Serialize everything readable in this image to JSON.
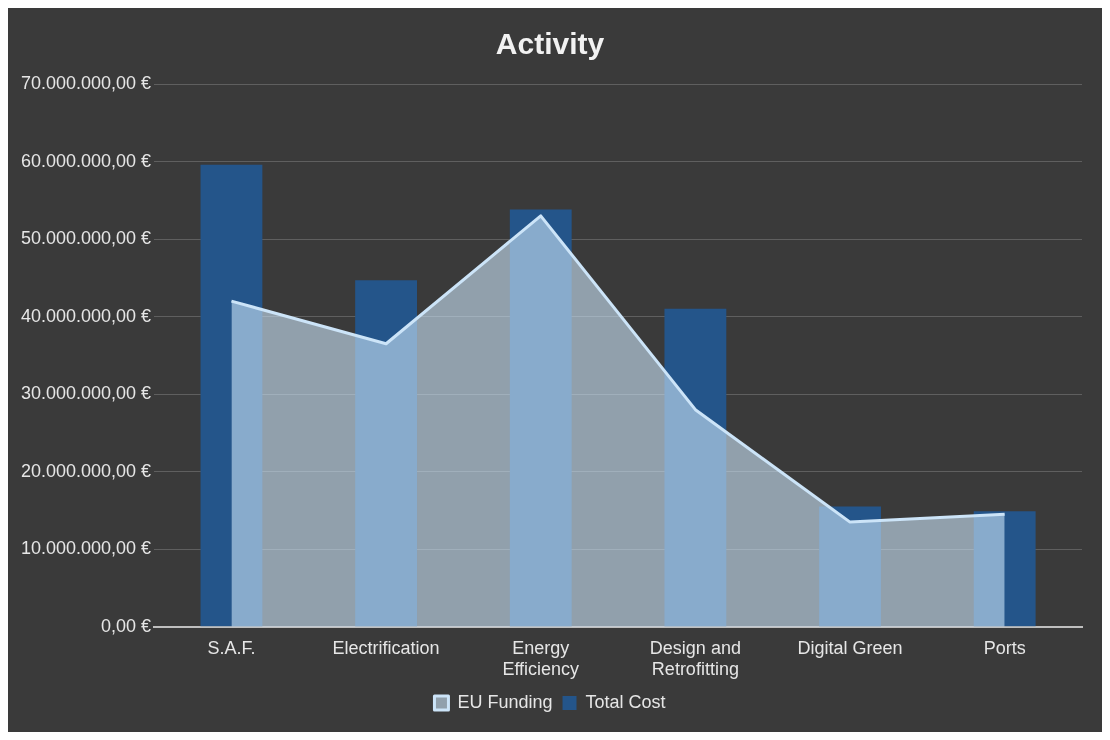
{
  "chart_data": {
    "type": "bar",
    "title": "Activity",
    "categories": [
      "S.A.F.",
      "Electrification",
      "Energy Efficiency",
      "Design and Retrofitting",
      "Digital Green",
      "Ports"
    ],
    "series": [
      {
        "name": "EU Funding",
        "type": "area",
        "color": "#cce4f8",
        "values": [
          42000000,
          36500000,
          53000000,
          28000000,
          13500000,
          14500000
        ]
      },
      {
        "name": "Total Cost",
        "color": "#24558a",
        "values": [
          59600000,
          44700000,
          53800000,
          41000000,
          15500000,
          14900000
        ]
      }
    ],
    "ylim": [
      0,
      70000000
    ],
    "yticks": [
      {
        "value": 0,
        "label": "0,00 €"
      },
      {
        "value": 10000000,
        "label": "10.000.000,00 €"
      },
      {
        "value": 20000000,
        "label": "20.000.000,00 €"
      },
      {
        "value": 30000000,
        "label": "30.000.000,00 €"
      },
      {
        "value": 40000000,
        "label": "40.000.000,00 €"
      },
      {
        "value": 50000000,
        "label": "50.000.000,00 €"
      },
      {
        "value": 60000000,
        "label": "60.000.000,00 €"
      },
      {
        "value": 70000000,
        "label": "70.000.000,00 €"
      }
    ],
    "grid": "y",
    "legend": "bottom"
  }
}
